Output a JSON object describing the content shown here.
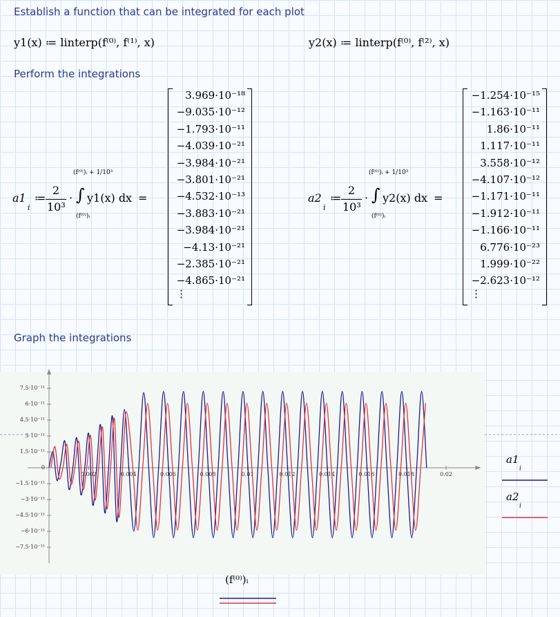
{
  "headings": [
    "Establish a function that can be integrated for each plot",
    "Perform the integrations",
    "Graph the integrations"
  ],
  "definitions": [
    "y1(x) ≔ linterp(f⁽⁰⁾, f⁽¹⁾, x)",
    "y2(x) ≔ linterp(f⁽⁰⁾, f⁽²⁾, x)"
  ],
  "integrals": [
    {
      "name": "a1",
      "index": "i",
      "assign": "≔",
      "numerator": "2",
      "denominator": "10³",
      "dot": "·",
      "integral": "∫",
      "upper_limit": "(f⁽⁰⁾)ᵢ + 1/10³",
      "lower_limit": "(f⁽⁰⁾)ᵢ",
      "integrand": "y1(x) dx",
      "equals": "=",
      "results": [
        "3.969·10⁻¹⁸",
        "−9.035·10⁻¹²",
        "−1.793·10⁻¹¹",
        "−4.039·10⁻²¹",
        "−3.984·10⁻²¹",
        "−3.801·10⁻²¹",
        "−4.532·10⁻¹³",
        "−3.883·10⁻²¹",
        "−3.984·10⁻²¹",
        "−4.13·10⁻²¹",
        "−2.385·10⁻²¹",
        "−4.865·10⁻²¹"
      ],
      "ellipsis": "⋮"
    },
    {
      "name": "a2",
      "index": "i",
      "assign": "≔",
      "numerator": "2",
      "denominator": "10³",
      "dot": "·",
      "integral": "∫",
      "upper_limit": "(f⁽⁰⁾)ᵢ + 1/10³",
      "lower_limit": "(f⁽⁰⁾)ᵢ",
      "integrand": "y2(x) dx",
      "equals": "=",
      "results": [
        "−1.254·10⁻¹⁵",
        "−1.163·10⁻¹¹",
        "1.86·10⁻¹¹",
        "1.117·10⁻¹¹",
        "3.558·10⁻¹²",
        "−4.107·10⁻¹²",
        "−1.171·10⁻¹¹",
        "−1.912·10⁻¹¹",
        "−1.166·10⁻¹¹",
        "6.776·10⁻²³",
        "1.999·10⁻²²",
        "−2.623·10⁻¹²"
      ],
      "ellipsis": "⋮"
    }
  ],
  "chart_data": {
    "type": "line",
    "x_label": "(f⁽⁰⁾)ᵢ",
    "xlim": [
      0,
      0.0212
    ],
    "ylim": [
      -9e-11,
      9e-11
    ],
    "xticks": [
      0.002,
      0.004,
      0.006,
      0.008,
      0.01,
      0.012,
      0.014,
      0.016,
      0.018,
      0.02
    ],
    "yticks": [
      {
        "value": 7.5e-11,
        "label": "7.5·10⁻¹¹"
      },
      {
        "value": 6e-11,
        "label": "6·10⁻¹¹"
      },
      {
        "value": 4.5e-11,
        "label": "4.5·10⁻¹¹"
      },
      {
        "value": 3e-11,
        "label": "3·10⁻¹¹"
      },
      {
        "value": 1.5e-11,
        "label": "1.5·10⁻¹¹"
      },
      0,
      {
        "value": -1.5e-11,
        "label": "−1.5·10⁻¹¹"
      },
      {
        "value": -3e-11,
        "label": "−3·10⁻¹¹"
      },
      {
        "value": -4.5e-11,
        "label": "−4.5·10⁻¹¹"
      },
      {
        "value": -6e-11,
        "label": "−6·10⁻¹¹"
      },
      {
        "value": -7.5e-11,
        "label": "−7.5·10⁻¹¹"
      }
    ],
    "series": [
      {
        "name": "a1",
        "name_index": "i",
        "color": "#1b1b8a",
        "x": [
          0,
          0.0002,
          0.0004,
          0.0006,
          0.0008,
          0.001,
          0.0012,
          0.0014,
          0.0016,
          0.0018,
          0.002,
          0.0022,
          0.0024,
          0.0026,
          0.0028,
          0.003,
          0.0032,
          0.0034,
          0.0036,
          0.0038,
          0.00402,
          0.00427,
          0.00452,
          0.00477,
          0.00502,
          0.00527,
          0.00552,
          0.00577,
          0.00602,
          0.00627,
          0.00652,
          0.00677,
          0.00702,
          0.00727,
          0.00752,
          0.00777,
          0.00802,
          0.00827,
          0.00852,
          0.00877,
          0.00902,
          0.00927,
          0.00952,
          0.00977,
          0.01002,
          0.01027,
          0.01052,
          0.01077,
          0.01102,
          0.01127,
          0.01152,
          0.01177,
          0.01202,
          0.01227,
          0.01252,
          0.01277,
          0.01302,
          0.01327,
          0.01352,
          0.01377,
          0.01402,
          0.01427,
          0.01452,
          0.01477,
          0.01502,
          0.01527,
          0.01552,
          0.01577,
          0.01602,
          0.01627,
          0.01652,
          0.01677,
          0.01702,
          0.01727,
          0.01752,
          0.01777,
          0.01802,
          0.01827,
          0.01852,
          0.01877,
          0.01902
        ],
        "values": [
          0,
          1.5e-11,
          -1.2e-11,
          5e-12,
          2.5e-11,
          -2e-11,
          0,
          2.8e-11,
          -2.5e-11,
          0,
          3.2e-11,
          -3.5e-11,
          0,
          4e-11,
          -4.2e-11,
          0,
          4.8e-11,
          -5e-11,
          0,
          5.5e-11,
          0,
          -6e-11,
          0,
          7.1e-11,
          0,
          -6.6e-11,
          0,
          7.2e-11,
          0,
          -6.6e-11,
          0,
          7.2e-11,
          0,
          -6.6e-11,
          0,
          7.2e-11,
          0,
          -6.6e-11,
          0,
          7.2e-11,
          0,
          -6.6e-11,
          0,
          7.2e-11,
          0,
          -6.6e-11,
          0,
          7.2e-11,
          0,
          -6.6e-11,
          0,
          7.2e-11,
          0,
          -6.6e-11,
          0,
          7.2e-11,
          0,
          -6.6e-11,
          0,
          7.2e-11,
          0,
          -6.6e-11,
          0,
          7.2e-11,
          0,
          -6.6e-11,
          0,
          7.2e-11,
          0,
          -6.6e-11,
          0,
          7.2e-11,
          0,
          -6.6e-11,
          0,
          7.2e-11,
          0,
          -6.6e-11,
          0,
          7.2e-11,
          0
        ]
      },
      {
        "name": "a2",
        "name_index": "i",
        "color": "#e0323f",
        "x": [
          0.0001,
          0.0003,
          0.0005,
          0.0007,
          0.0009,
          0.0011,
          0.0013,
          0.0015,
          0.0017,
          0.0019,
          0.0021,
          0.0023,
          0.0025,
          0.0027,
          0.0029,
          0.0031,
          0.0033,
          0.0035,
          0.0037,
          0.0039,
          0.00422,
          0.00447,
          0.00472,
          0.00497,
          0.00522,
          0.00547,
          0.00572,
          0.00597,
          0.00622,
          0.00647,
          0.00672,
          0.00697,
          0.00722,
          0.00747,
          0.00772,
          0.00797,
          0.00822,
          0.00847,
          0.00872,
          0.00897,
          0.00922,
          0.00947,
          0.00972,
          0.00997,
          0.01022,
          0.01047,
          0.01072,
          0.01097,
          0.01122,
          0.01147,
          0.01172,
          0.01197,
          0.01222,
          0.01247,
          0.01272,
          0.01297,
          0.01322,
          0.01347,
          0.01372,
          0.01397,
          0.01422,
          0.01447,
          0.01472,
          0.01497,
          0.01522,
          0.01547,
          0.01572,
          0.01597,
          0.01622,
          0.01647,
          0.01672,
          0.01697,
          0.01722,
          0.01747,
          0.01772,
          0.01797,
          0.01822,
          0.01847,
          0.01872,
          0.01897
        ],
        "values": [
          0,
          2e-11,
          -1e-11,
          0,
          2.2e-11,
          -1.5e-11,
          0,
          2.5e-11,
          -2e-11,
          0,
          3e-11,
          -3e-11,
          0,
          3.8e-11,
          -3.8e-11,
          0,
          4.6e-11,
          -4.6e-11,
          0,
          5.3e-11,
          0,
          -5.9e-11,
          0,
          6.1e-11,
          0,
          -5.9e-11,
          0,
          6.1e-11,
          0,
          -5.9e-11,
          0,
          6.1e-11,
          0,
          -5.9e-11,
          0,
          6.1e-11,
          0,
          -5.9e-11,
          0,
          6.1e-11,
          0,
          -5.9e-11,
          0,
          6.1e-11,
          0,
          -5.9e-11,
          0,
          6.1e-11,
          0,
          -5.9e-11,
          0,
          6.1e-11,
          0,
          -5.9e-11,
          0,
          6.1e-11,
          0,
          -5.9e-11,
          0,
          6.1e-11,
          0,
          -5.9e-11,
          0,
          6.1e-11,
          0,
          -5.9e-11,
          0,
          6.1e-11,
          0,
          -5.9e-11,
          0,
          6.1e-11,
          0,
          -5.9e-11,
          0,
          6.1e-11,
          0,
          -5.9e-11,
          0,
          6.1e-11
        ]
      }
    ]
  }
}
